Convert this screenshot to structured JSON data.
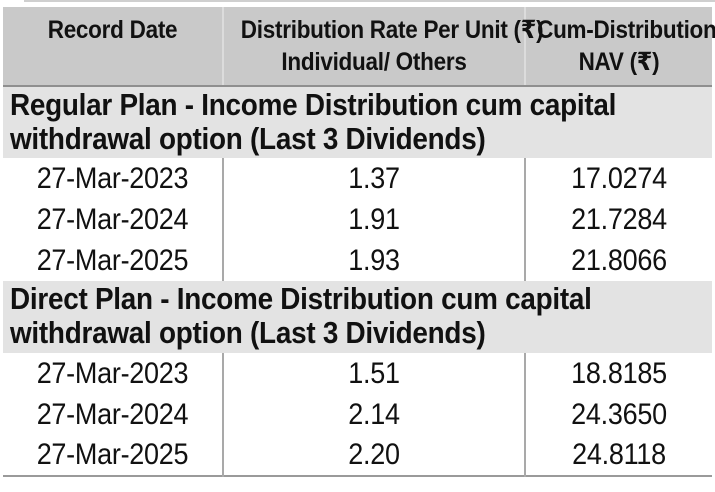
{
  "table": {
    "header": {
      "record_date": "Record Date",
      "distribution_rate_line1": "Distribution Rate Per Unit (₹)",
      "distribution_rate_line2": "Individual/ Others",
      "cum_nav_line1": "Cum-Distribution",
      "cum_nav_line2": "NAV (₹)"
    },
    "sections": [
      {
        "title_line1": "Regular Plan - Income Distribution cum capital",
        "title_line2": "withdrawal option (Last 3 Dividends)",
        "rows": [
          {
            "record_date": "27-Mar-2023",
            "rate": "1.37",
            "nav": "17.0274"
          },
          {
            "record_date": "27-Mar-2024",
            "rate": "1.91",
            "nav": "21.7284"
          },
          {
            "record_date": "27-Mar-2025",
            "rate": "1.93",
            "nav": "21.8066"
          }
        ]
      },
      {
        "title_line1": "Direct Plan - Income Distribution cum capital",
        "title_line2": "withdrawal option (Last 3 Dividends)",
        "rows": [
          {
            "record_date": "27-Mar-2023",
            "rate": "1.51",
            "nav": "18.8185"
          },
          {
            "record_date": "27-Mar-2024",
            "rate": "2.14",
            "nav": "24.3650"
          },
          {
            "record_date": "27-Mar-2025",
            "rate": "2.20",
            "nav": "24.8118"
          }
        ]
      }
    ]
  },
  "chart_data": {
    "type": "table",
    "title": "Income Distribution cum capital withdrawal (Last 3 Dividends)",
    "columns": [
      "Record Date",
      "Distribution Rate Per Unit (₹) Individual/ Others",
      "Cum-Distribution NAV (₹)"
    ],
    "series": [
      {
        "name": "Regular Plan",
        "rows": [
          [
            "27-Mar-2023",
            1.37,
            17.0274
          ],
          [
            "27-Mar-2024",
            1.91,
            21.7284
          ],
          [
            "27-Mar-2025",
            1.93,
            21.8066
          ]
        ]
      },
      {
        "name": "Direct Plan",
        "rows": [
          [
            "27-Mar-2023",
            1.51,
            18.8185
          ],
          [
            "27-Mar-2024",
            2.14,
            24.365
          ],
          [
            "27-Mar-2025",
            2.2,
            24.8118
          ]
        ]
      }
    ]
  },
  "colors": {
    "header_bg": "#c9c9c9",
    "section_bg": "#e3e3e3",
    "divider_light": "#dcdcdc",
    "divider_dark": "#a9a9a9",
    "strong_border": "#8f8f8f",
    "text": "#111111"
  }
}
